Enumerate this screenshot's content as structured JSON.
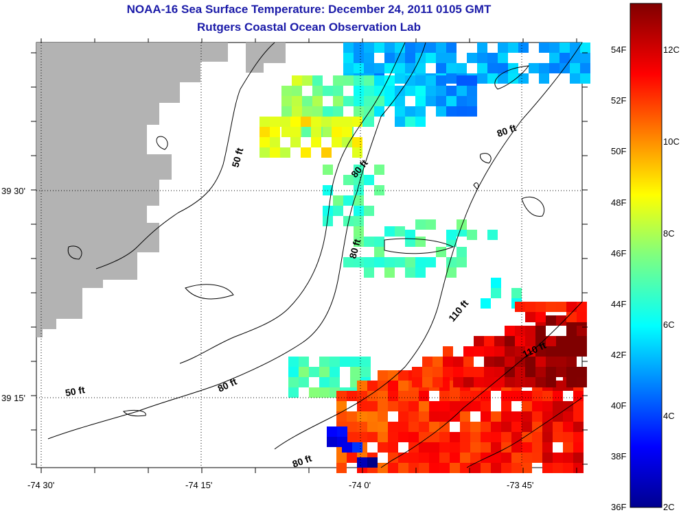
{
  "title": "NOAA-16 Sea Surface Temperature:  December 24, 2011 0105 GMT",
  "subtitle": "Rutgers Coastal Ocean Observation Lab",
  "axes": {
    "x_ticks": [
      "-74 30'",
      "-74 15'",
      "-74 0'",
      "-73 45'"
    ],
    "y_ticks": [
      "39 30'",
      "39 15'"
    ]
  },
  "contour_labels": [
    "50 ft",
    "80 ft",
    "80 ft",
    "80 ft",
    "80 ft",
    "110 ft",
    "110 ft",
    "50 ft",
    "80 ft"
  ],
  "colorbar": {
    "fahrenheit": [
      "54F",
      "52F",
      "50F",
      "48F",
      "46F",
      "44F",
      "42F",
      "40F",
      "38F",
      "36F"
    ],
    "celsius": [
      "12C",
      "10C",
      "8C",
      "6C",
      "4C",
      "2C"
    ]
  },
  "colors": {
    "land": "#b3b3b3",
    "title": "#1a1aa8"
  }
}
